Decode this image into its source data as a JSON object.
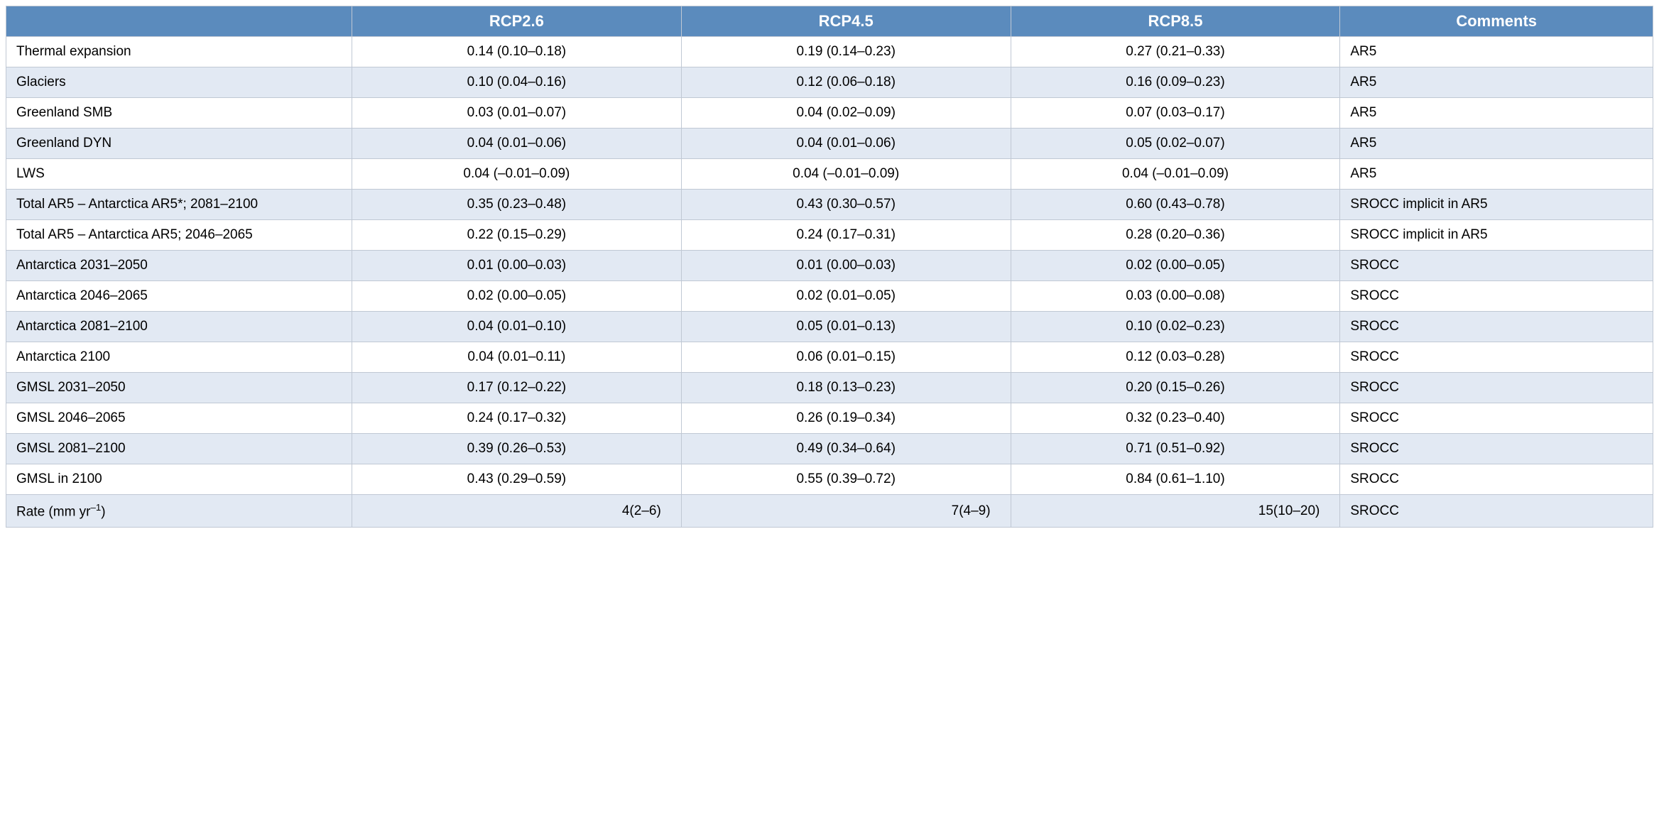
{
  "table": {
    "header_bg": "#5b8bbd",
    "header_fg": "#ffffff",
    "row_bg_even": "#ffffff",
    "row_bg_odd": "#e2e9f3",
    "border_color": "#c0c8d4",
    "col_widths": [
      "21%",
      "20%",
      "20%",
      "20%",
      "19%"
    ],
    "columns": [
      "",
      "RCP2.6",
      "RCP4.5",
      "RCP8.5",
      "Comments"
    ],
    "rows": [
      {
        "label": "Thermal expansion",
        "values": [
          "0.14 (0.10–0.18)",
          "0.19 (0.14–0.23)",
          "0.27 (0.21–0.33)"
        ],
        "comment": "AR5",
        "align": "center"
      },
      {
        "label": "Glaciers",
        "values": [
          "0.10 (0.04–0.16)",
          "0.12 (0.06–0.18)",
          "0.16 (0.09–0.23)"
        ],
        "comment": "AR5",
        "align": "center"
      },
      {
        "label": "Greenland SMB",
        "values": [
          "0.03 (0.01–0.07)",
          "0.04 (0.02–0.09)",
          "0.07 (0.03–0.17)"
        ],
        "comment": "AR5",
        "align": "center"
      },
      {
        "label": "Greenland DYN",
        "values": [
          "0.04 (0.01–0.06)",
          "0.04 (0.01–0.06)",
          "0.05 (0.02–0.07)"
        ],
        "comment": "AR5",
        "align": "center"
      },
      {
        "label": "LWS",
        "values": [
          "0.04 (–0.01–0.09)",
          "0.04 (–0.01–0.09)",
          "0.04 (–0.01–0.09)"
        ],
        "comment": "AR5",
        "align": "center"
      },
      {
        "label": "Total AR5 – Antarctica AR5*; 2081–2100",
        "values": [
          "0.35 (0.23–0.48)",
          "0.43 (0.30–0.57)",
          "0.60 (0.43–0.78)"
        ],
        "comment": "SROCC implicit in AR5",
        "align": "center"
      },
      {
        "label": "Total AR5 – Antarctica AR5; 2046–2065",
        "values": [
          "0.22 (0.15–0.29)",
          "0.24 (0.17–0.31)",
          "0.28 (0.20–0.36)"
        ],
        "comment": "SROCC implicit in AR5",
        "align": "center"
      },
      {
        "label": "Antarctica 2031–2050",
        "values": [
          "0.01 (0.00–0.03)",
          "0.01 (0.00–0.03)",
          "0.02 (0.00–0.05)"
        ],
        "comment": "SROCC",
        "align": "center"
      },
      {
        "label": "Antarctica 2046–2065",
        "values": [
          "0.02 (0.00–0.05)",
          "0.02 (0.01–0.05)",
          "0.03 (0.00–0.08)"
        ],
        "comment": "SROCC",
        "align": "center"
      },
      {
        "label": "Antarctica 2081–2100",
        "values": [
          "0.04 (0.01–0.10)",
          "0.05 (0.01–0.13)",
          "0.10 (0.02–0.23)"
        ],
        "comment": "SROCC",
        "align": "center"
      },
      {
        "label": "Antarctica 2100",
        "values": [
          "0.04 (0.01–0.11)",
          "0.06 (0.01–0.15)",
          "0.12 (0.03–0.28)"
        ],
        "comment": "SROCC",
        "align": "center"
      },
      {
        "label": "GMSL 2031–2050",
        "values": [
          "0.17 (0.12–0.22)",
          "0.18 (0.13–0.23)",
          "0.20 (0.15–0.26)"
        ],
        "comment": "SROCC",
        "align": "center"
      },
      {
        "label": "GMSL 2046–2065",
        "values": [
          "0.24 (0.17–0.32)",
          "0.26 (0.19–0.34)",
          "0.32 (0.23–0.40)"
        ],
        "comment": "SROCC",
        "align": "center"
      },
      {
        "label": "GMSL 2081–2100",
        "values": [
          "0.39 (0.26–0.53)",
          "0.49 (0.34–0.64)",
          "0.71 (0.51–0.92)"
        ],
        "comment": "SROCC",
        "align": "center"
      },
      {
        "label": "GMSL in 2100",
        "values": [
          "0.43 (0.29–0.59)",
          "0.55 (0.39–0.72)",
          "0.84 (0.61–1.10)"
        ],
        "comment": "SROCC",
        "align": "center"
      },
      {
        "label_html": "Rate (mm yr<sup>–1</sup>)",
        "label": "Rate (mm yr–1)",
        "values": [
          "4(2–6)",
          "7(4–9)",
          "15(10–20)"
        ],
        "comment": "SROCC",
        "align": "value-right"
      }
    ]
  }
}
